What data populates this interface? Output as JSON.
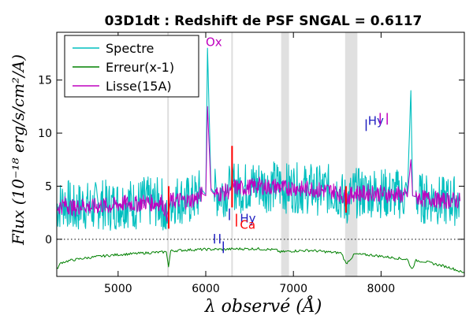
{
  "chart_data": {
    "type": "line",
    "title": "03D1dt : Redshift de PSF SNGAL = 0.6117",
    "xlabel": "λ observé (Å)",
    "ylabel": "Flux (10⁻¹⁸ erg/s/cm²/A)",
    "xlim": [
      4300,
      8950
    ],
    "ylim": [
      -3.5,
      19.5
    ],
    "x_ticks": [
      5000,
      6000,
      7000,
      8000
    ],
    "x_tick_labels": [
      "5000",
      "6000",
      "7000",
      "8000"
    ],
    "y_ticks": [
      0,
      5,
      10,
      15
    ],
    "y_tick_labels": [
      "0",
      "5",
      "10",
      "15"
    ],
    "grid": false,
    "legend_position": "top-left",
    "series": [
      {
        "name": "Spectre",
        "color": "#00bfbf",
        "x": [
          4300,
          4400,
          4500,
          4600,
          4700,
          4800,
          4900,
          5000,
          5100,
          5200,
          5300,
          5400,
          5500,
          5560,
          5600,
          5700,
          5800,
          5900,
          5960,
          6000,
          6020,
          6060,
          6100,
          6200,
          6280,
          6300,
          6400,
          6500,
          6600,
          6700,
          6800,
          6900,
          7000,
          7100,
          7200,
          7300,
          7400,
          7500,
          7600,
          7700,
          7800,
          7900,
          8000,
          8100,
          8200,
          8300,
          8340,
          8360,
          8400,
          8500,
          8600,
          8700,
          8800,
          8900
        ],
        "y": [
          3.0,
          3.6,
          2.7,
          3.3,
          2.9,
          3.4,
          3.1,
          3.3,
          3.5,
          3.2,
          3.6,
          3.4,
          3.5,
          1.5,
          3.7,
          3.8,
          3.6,
          4.0,
          4.6,
          4.2,
          18.0,
          4.8,
          4.3,
          4.5,
          4.7,
          5.2,
          4.8,
          5.0,
          5.2,
          4.9,
          5.1,
          4.8,
          4.9,
          4.7,
          4.8,
          4.6,
          4.7,
          4.5,
          3.5,
          4.4,
          4.3,
          4.5,
          4.4,
          4.2,
          4.3,
          4.0,
          14.0,
          4.1,
          4.0,
          3.8,
          3.9,
          3.5,
          3.7,
          3.6
        ]
      },
      {
        "name": "Erreur(x-1)",
        "color": "#008000",
        "x": [
          4300,
          4350,
          4450,
          4600,
          4800,
          5000,
          5200,
          5400,
          5550,
          5575,
          5600,
          5800,
          6000,
          6200,
          6400,
          6600,
          6800,
          6850,
          7000,
          7200,
          7400,
          7550,
          7600,
          7700,
          7900,
          8100,
          8300,
          8350,
          8400,
          8500,
          8600,
          8700,
          8800,
          8950
        ],
        "y": [
          -2.8,
          -2.2,
          -2.0,
          -1.8,
          -1.6,
          -1.45,
          -1.35,
          -1.25,
          -1.2,
          -2.6,
          -1.1,
          -1.0,
          -0.95,
          -0.95,
          -0.9,
          -0.9,
          -1.0,
          -1.2,
          -1.1,
          -1.05,
          -1.2,
          -1.3,
          -2.3,
          -1.4,
          -1.5,
          -1.7,
          -1.9,
          -2.8,
          -2.0,
          -2.1,
          -2.3,
          -2.5,
          -2.7,
          -3.2
        ]
      },
      {
        "name": "Lisse(15A)",
        "color": "#bf00bf",
        "x": [
          4300,
          4400,
          4500,
          4600,
          4700,
          4800,
          4900,
          5000,
          5100,
          5200,
          5300,
          5400,
          5500,
          5560,
          5600,
          5700,
          5800,
          5900,
          5960,
          6000,
          6020,
          6060,
          6100,
          6200,
          6280,
          6300,
          6400,
          6500,
          6600,
          6700,
          6800,
          6900,
          7000,
          7100,
          7200,
          7300,
          7400,
          7500,
          7600,
          7700,
          7800,
          7900,
          8000,
          8100,
          8200,
          8300,
          8340,
          8360,
          8400,
          8500,
          8600,
          8700,
          8800,
          8900
        ],
        "y": [
          3.0,
          3.3,
          2.9,
          3.2,
          3.0,
          3.2,
          3.1,
          3.3,
          3.4,
          3.3,
          3.5,
          3.4,
          3.5,
          2.3,
          3.6,
          3.7,
          3.6,
          3.9,
          4.3,
          4.1,
          12.5,
          4.6,
          4.2,
          4.4,
          4.6,
          5.0,
          4.8,
          4.9,
          5.1,
          4.9,
          5.0,
          4.8,
          4.9,
          4.7,
          4.8,
          4.6,
          4.6,
          4.5,
          3.8,
          4.4,
          4.3,
          4.4,
          4.3,
          4.2,
          4.2,
          4.0,
          7.5,
          4.1,
          4.0,
          3.8,
          3.8,
          3.6,
          3.7,
          3.6
        ]
      }
    ],
    "zero_line": {
      "y": 0
    },
    "vertical_lines": [
      {
        "x": 5570,
        "color": "#dddddd"
      },
      {
        "x": 6300,
        "color": "#dddddd"
      }
    ],
    "bands": [
      {
        "x0": 6860,
        "x1": 6950,
        "color": "#e0e0e0"
      },
      {
        "x0": 7590,
        "x1": 7730,
        "color": "#e0e0e0"
      }
    ],
    "sky_lines": [
      {
        "x": 5577,
        "y0": 1.0,
        "y1": 5.0,
        "color": "#ff0000"
      },
      {
        "x": 6300,
        "y0": 3.0,
        "y1": 8.8,
        "color": "#ff0000"
      },
      {
        "x": 7600,
        "y0": 2.5,
        "y1": 5.0,
        "color": "#ff0000"
      }
    ],
    "annotations": [
      {
        "text": "Ox",
        "x": 6000,
        "y": 18.2,
        "color": "#bf00bf"
      },
      {
        "text": "Hy",
        "x": 6390,
        "y": 1.6,
        "color": "#2020c0"
      },
      {
        "text": "Ca",
        "x": 6390,
        "y": 1.0,
        "color": "#ff0000"
      },
      {
        "text": "Hy",
        "x": 7850,
        "y": 10.8,
        "color": "#2020c0"
      },
      {
        "text": "",
        "x": 7830,
        "y": 11.3,
        "color": "#2020c0",
        "bar_x": 7830,
        "bar_y0": 10.2,
        "bar_y1": 11.3
      },
      {
        "text": "",
        "x": 7990,
        "y": 11.8,
        "color": "#bf00bf",
        "bar_x": 7990,
        "bar_y0": 10.8,
        "bar_y1": 11.9
      },
      {
        "text": "",
        "x": 8070,
        "y": 11.8,
        "color": "#bf00bf",
        "bar_x": 8070,
        "bar_y0": 10.8,
        "bar_y1": 11.9
      },
      {
        "text": "",
        "x": 6270,
        "y": 2.6,
        "color": "#2020c0",
        "bar_x": 6270,
        "bar_y0": 1.8,
        "bar_y1": 2.9
      },
      {
        "text": "",
        "x": 6350,
        "y": 2.4,
        "color": "#ff0000",
        "bar_x": 6350,
        "bar_y0": 1.2,
        "bar_y1": 2.4
      },
      {
        "text": "",
        "x": 6100,
        "y": 0.5,
        "color": "#2020c0",
        "bar_x": 6100,
        "bar_y0": -0.4,
        "bar_y1": 0.5
      },
      {
        "text": "",
        "x": 6160,
        "y": 0.5,
        "color": "#2020c0",
        "bar_x": 6160,
        "bar_y0": -0.4,
        "bar_y1": 0.5
      },
      {
        "text": "",
        "x": 6200,
        "y": -0.2,
        "color": "#2020c0",
        "bar_x": 6200,
        "bar_y0": -1.3,
        "bar_y1": -0.2
      }
    ]
  }
}
